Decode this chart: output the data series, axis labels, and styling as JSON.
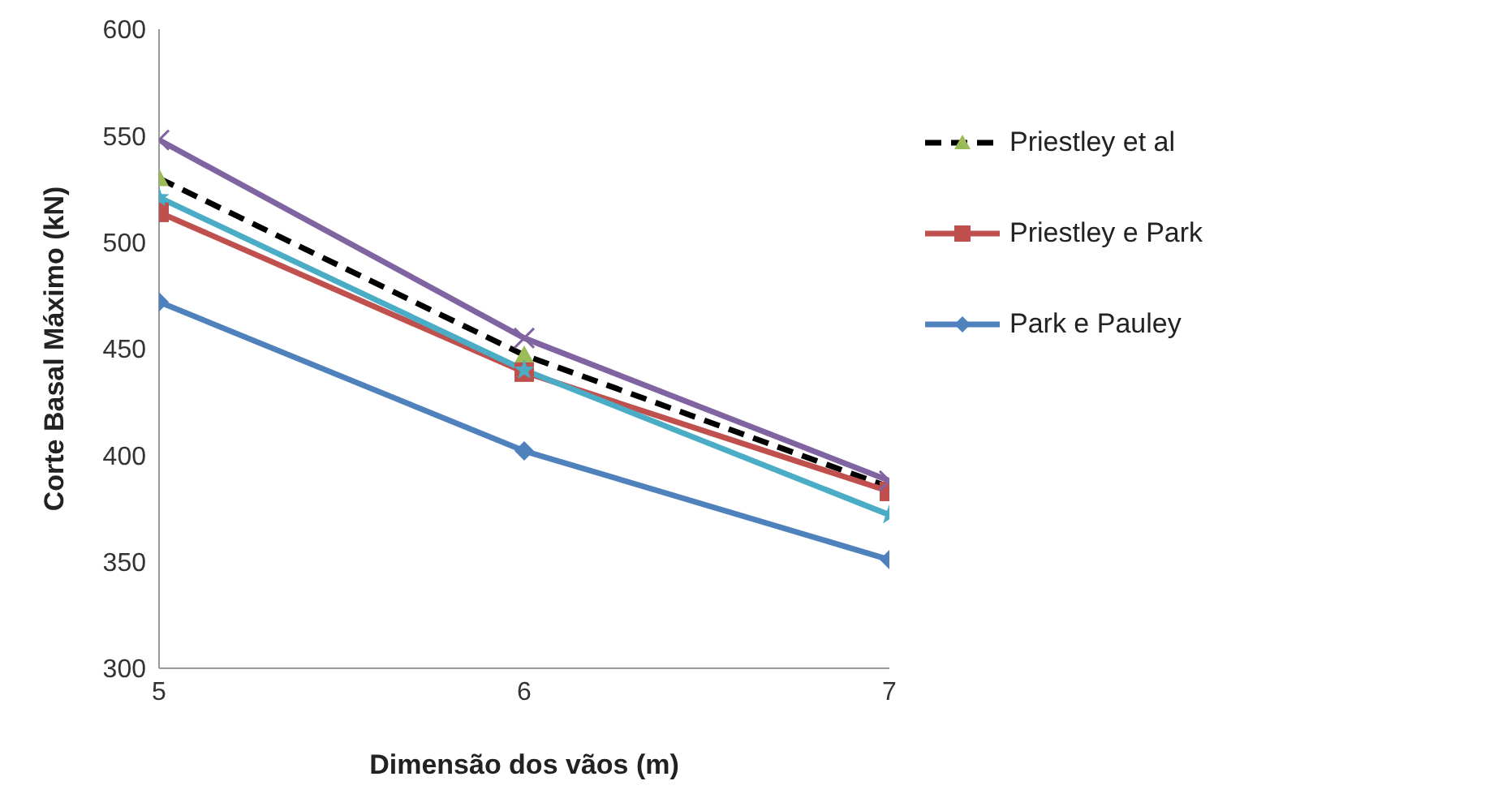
{
  "chart_data": {
    "type": "line",
    "xlabel": "Dimensão dos vãos (m)",
    "ylabel": "Corte Basal Máximo (kN)",
    "x": [
      5,
      6,
      7
    ],
    "xlim": [
      5,
      7
    ],
    "xticks": [
      5,
      6,
      7
    ],
    "ylim": [
      300,
      600
    ],
    "yticks": [
      300,
      350,
      400,
      450,
      500,
      550,
      600
    ],
    "grid": false,
    "legend": "right",
    "series": [
      {
        "name": "Priestley et al",
        "color": "#000000",
        "values": [
          530,
          447,
          385
        ],
        "marker": "triangle",
        "colors": [
          "#9bbb59",
          "#9bbb59",
          "#9bbb59"
        ],
        "line_style": "dashed"
      },
      {
        "name": "Priestley e Park",
        "color": "#c0504d",
        "values": [
          514,
          439,
          383
        ],
        "marker": "square"
      },
      {
        "name": "Park e Pauley",
        "color": "#4f81bd",
        "values": [
          472,
          402,
          351
        ],
        "marker": "diamond"
      },
      {
        "color": "#8064a2",
        "values": [
          548,
          455,
          388
        ],
        "marker": "cross"
      },
      {
        "color": "#4bacc6",
        "values": [
          521,
          440,
          372
        ],
        "marker": "star"
      }
    ]
  }
}
